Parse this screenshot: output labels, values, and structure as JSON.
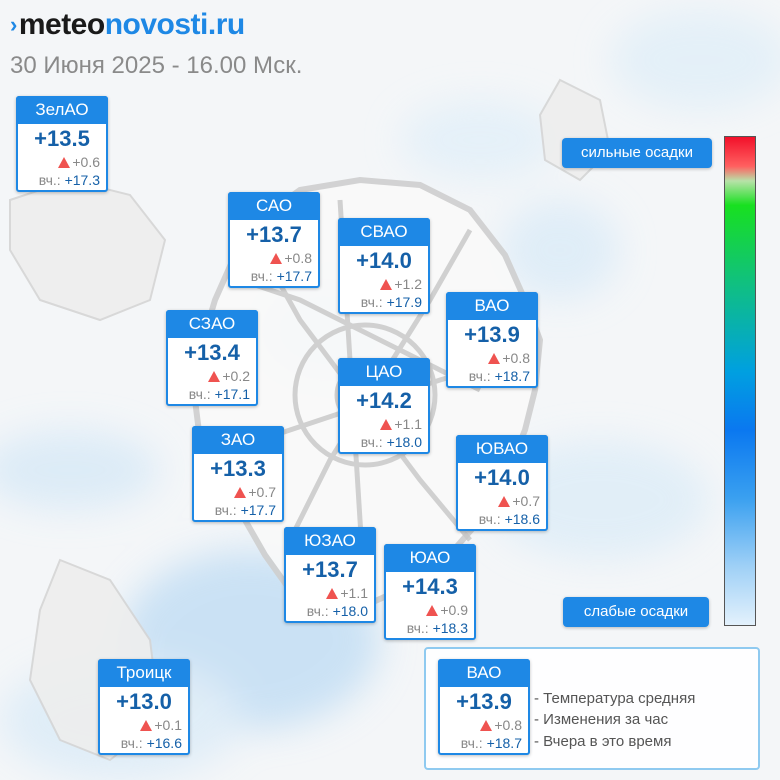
{
  "brand": {
    "part1": "meteo",
    "part2": "novosti.ru"
  },
  "subtitle": "30 Июня 2025 - 16.00 Мск.",
  "districts": [
    {
      "name": "ЗелАО",
      "temp": "+13.5",
      "delta": "+0.6",
      "yest_label": "вч.:",
      "yest": "+17.3"
    },
    {
      "name": "САО",
      "temp": "+13.7",
      "delta": "+0.8",
      "yest_label": "вч.:",
      "yest": "+17.7"
    },
    {
      "name": "СВАО",
      "temp": "+14.0",
      "delta": "+1.2",
      "yest_label": "вч.:",
      "yest": "+17.9"
    },
    {
      "name": "ВАО",
      "temp": "+13.9",
      "delta": "+0.8",
      "yest_label": "вч.:",
      "yest": "+18.7"
    },
    {
      "name": "СЗАО",
      "temp": "+13.4",
      "delta": "+0.2",
      "yest_label": "вч.:",
      "yest": "+17.1"
    },
    {
      "name": "ЦАО",
      "temp": "+14.2",
      "delta": "+1.1",
      "yest_label": "вч.:",
      "yest": "+18.0"
    },
    {
      "name": "ЗАО",
      "temp": "+13.3",
      "delta": "+0.7",
      "yest_label": "вч.:",
      "yest": "+17.7"
    },
    {
      "name": "ЮВАО",
      "temp": "+14.0",
      "delta": "+0.7",
      "yest_label": "вч.:",
      "yest": "+18.6"
    },
    {
      "name": "ЮЗАО",
      "temp": "+13.7",
      "delta": "+1.1",
      "yest_label": "вч.:",
      "yest": "+18.0"
    },
    {
      "name": "ЮАО",
      "temp": "+14.3",
      "delta": "+0.9",
      "yest_label": "вч.:",
      "yest": "+18.3"
    },
    {
      "name": "Троицк",
      "temp": "+13.0",
      "delta": "+0.1",
      "yest_label": "вч.:",
      "yest": "+16.6"
    }
  ],
  "precip_scale": {
    "top_label": "сильные осадки",
    "bottom_label": "слабые осадки"
  },
  "legend": {
    "sample": {
      "name": "ВАО",
      "temp": "+13.9",
      "delta": "+0.8",
      "yest_label": "вч.:",
      "yest": "+18.7"
    },
    "lines": [
      "- Температура средняя",
      "- Изменения за час",
      "- Вчера в это время"
    ]
  },
  "colors": {
    "accent": "#1e88e5",
    "value": "#1560a8",
    "increase": "#ef5350"
  }
}
